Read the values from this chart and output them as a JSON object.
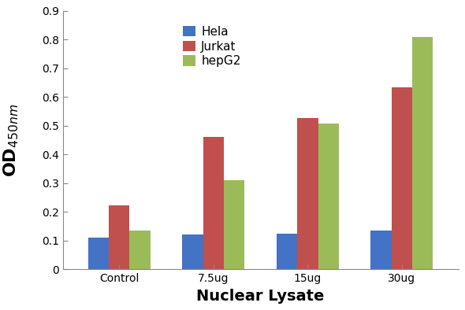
{
  "categories": [
    "Control",
    "7.5ug",
    "15ug",
    "30ug"
  ],
  "series": {
    "Hela": [
      0.11,
      0.12,
      0.123,
      0.135
    ],
    "Jurkat": [
      0.222,
      0.46,
      0.527,
      0.635
    ],
    "hepG2": [
      0.136,
      0.31,
      0.507,
      0.808
    ]
  },
  "colors": {
    "Hela": "#4472C4",
    "Jurkat": "#C0504D",
    "hepG2": "#9BBB59"
  },
  "ylabel_main": "OD",
  "ylabel_sub": "450nm",
  "xlabel": "Nuclear Lysate",
  "ylim": [
    0,
    0.9
  ],
  "yticks": [
    0,
    0.1,
    0.2,
    0.3,
    0.4,
    0.5,
    0.6,
    0.7,
    0.8,
    0.9
  ],
  "bar_width": 0.22,
  "legend_order": [
    "Hela",
    "Jurkat",
    "hepG2"
  ],
  "background_color": "#ffffff",
  "plot_bg_color": "#ffffff",
  "axis_label_fontsize": 14,
  "tick_fontsize": 10,
  "legend_fontsize": 11
}
